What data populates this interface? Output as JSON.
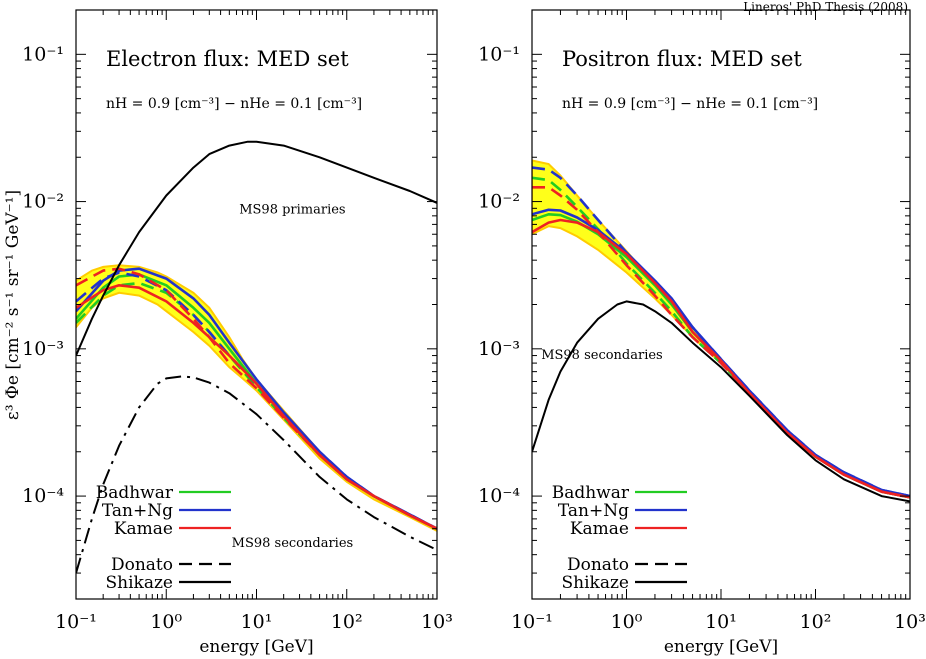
{
  "credit": "Lineros' PhD Thesis (2008)",
  "colors": {
    "band": "#ffff1a",
    "band_edge": "#ffcc00",
    "Badhwar": "#22cc22",
    "Tan+Ng": "#2233cc",
    "Kamae": "#ee2222",
    "reference": "#000000"
  },
  "shared_axes": {
    "xlabel": "energy [GeV]",
    "ylabel": "ε³ Φe [cm⁻² s⁻¹ sr⁻¹ GeV⁻¹]",
    "xscale": "log",
    "yscale": "log",
    "xlim": [
      0.1,
      1000
    ],
    "ylim": [
      2e-05,
      0.2
    ],
    "xticks": [
      "10⁻¹",
      "10⁰",
      "10¹",
      "10²",
      "10³"
    ],
    "yticks": [
      "10⁻⁴",
      "10⁻³",
      "10⁻²",
      "10⁻¹"
    ]
  },
  "legend": {
    "entries": [
      {
        "label": "Badhwar",
        "color": "#22cc22",
        "style": "solid"
      },
      {
        "label": "Tan+Ng",
        "color": "#2233cc",
        "style": "solid"
      },
      {
        "label": "Kamae",
        "color": "#ee2222",
        "style": "solid"
      },
      {
        "label": "Donato",
        "color": "#000000",
        "style": "dashed"
      },
      {
        "label": "Shikaze",
        "color": "#000000",
        "style": "solid"
      }
    ],
    "placement": "bottom-left"
  },
  "chart_data": [
    {
      "type": "line",
      "title": "Electron flux: MED set",
      "subtitle": "nH = 0.9 [cm⁻³] − nHe = 0.1 [cm⁻³]",
      "band": {
        "x": [
          0.1,
          0.15,
          0.2,
          0.3,
          0.5,
          0.8,
          1,
          2,
          3,
          5,
          7,
          10,
          20,
          50,
          100,
          200,
          500,
          1000
        ],
        "upper": [
          0.0029,
          0.0034,
          0.0036,
          0.0037,
          0.0036,
          0.0033,
          0.0031,
          0.0024,
          0.0019,
          0.0012,
          0.00085,
          0.00062,
          0.00038,
          0.0002,
          0.000135,
          0.0001,
          7.5e-05,
          6e-05
        ],
        "lower": [
          0.0014,
          0.0019,
          0.0022,
          0.0024,
          0.0023,
          0.002,
          0.0018,
          0.0013,
          0.00105,
          0.00075,
          0.00063,
          0.00052,
          0.00033,
          0.00018,
          0.000125,
          9.5e-05,
          7.2e-05,
          5.8e-05
        ]
      },
      "series": [
        {
          "name": "Badhwar",
          "model": "Shikaze",
          "x": [
            0.1,
            0.2,
            0.3,
            0.5,
            1,
            2,
            3,
            5,
            10,
            20,
            50,
            100,
            200,
            500,
            1000
          ],
          "values": [
            0.0016,
            0.0026,
            0.0031,
            0.0032,
            0.0027,
            0.0019,
            0.0015,
            0.001,
            0.00058,
            0.00035,
            0.00019,
            0.00013,
            0.0001,
            7.4e-05,
            6e-05
          ]
        },
        {
          "name": "Badhwar",
          "model": "Donato",
          "x": [
            0.1,
            0.2,
            0.3,
            0.5,
            1,
            2,
            3,
            5,
            10,
            20,
            50,
            100,
            200,
            500,
            1000
          ],
          "values": [
            0.0015,
            0.0023,
            0.0027,
            0.0028,
            0.0024,
            0.0017,
            0.0013,
            0.0009,
            0.00055,
            0.00034,
            0.00019,
            0.00013,
            0.0001,
            7.4e-05,
            6e-05
          ]
        },
        {
          "name": "Tan+Ng",
          "model": "Shikaze",
          "x": [
            0.1,
            0.2,
            0.3,
            0.5,
            1,
            2,
            3,
            5,
            10,
            20,
            50,
            100,
            200,
            500,
            1000
          ],
          "values": [
            0.0018,
            0.0029,
            0.0034,
            0.0035,
            0.003,
            0.0022,
            0.0017,
            0.0011,
            0.00062,
            0.00037,
            0.0002,
            0.000135,
            0.0001,
            7.5e-05,
            6e-05
          ]
        },
        {
          "name": "Tan+Ng",
          "model": "Donato",
          "x": [
            0.1,
            0.2,
            0.3,
            0.5,
            1,
            2,
            3,
            5,
            10,
            20,
            50,
            100,
            200,
            500,
            1000
          ],
          "values": [
            0.0021,
            0.003,
            0.0033,
            0.0031,
            0.0025,
            0.0017,
            0.0013,
            0.0009,
            0.00058,
            0.00036,
            0.0002,
            0.000135,
            0.0001,
            7.5e-05,
            6e-05
          ]
        },
        {
          "name": "Kamae",
          "model": "Shikaze",
          "x": [
            0.1,
            0.2,
            0.3,
            0.5,
            1,
            2,
            3,
            5,
            10,
            20,
            50,
            100,
            200,
            500,
            1000
          ],
          "values": [
            0.0019,
            0.0025,
            0.0027,
            0.0026,
            0.0021,
            0.0015,
            0.0012,
            0.0009,
            0.00058,
            0.00035,
            0.00019,
            0.00013,
            0.0001,
            7.4e-05,
            6e-05
          ]
        },
        {
          "name": "Kamae",
          "model": "Donato",
          "x": [
            0.1,
            0.2,
            0.3,
            0.5,
            1,
            2,
            3,
            5,
            10,
            20,
            50,
            100,
            200,
            500,
            1000
          ],
          "values": [
            0.0027,
            0.0034,
            0.0035,
            0.0032,
            0.0025,
            0.0016,
            0.0012,
            0.0008,
            0.00054,
            0.00034,
            0.00019,
            0.00013,
            0.0001,
            7.4e-05,
            6e-05
          ]
        },
        {
          "name": "MS98 primaries",
          "model": "reference",
          "x": [
            0.1,
            0.15,
            0.2,
            0.3,
            0.5,
            1,
            2,
            3,
            5,
            8,
            10,
            20,
            50,
            100,
            200,
            500,
            1000
          ],
          "values": [
            0.0009,
            0.0016,
            0.0023,
            0.0037,
            0.0062,
            0.011,
            0.017,
            0.021,
            0.024,
            0.0255,
            0.0255,
            0.024,
            0.02,
            0.017,
            0.0145,
            0.0118,
            0.0098
          ]
        },
        {
          "name": "MS98 secondaries",
          "model": "reference-dashdot",
          "x": [
            0.1,
            0.15,
            0.2,
            0.3,
            0.5,
            0.8,
            1,
            1.5,
            2,
            3,
            5,
            10,
            20,
            50,
            100,
            200,
            500,
            1000
          ],
          "values": [
            3e-05,
            7e-05,
            0.00012,
            0.00022,
            0.0004,
            0.00058,
            0.00063,
            0.00065,
            0.00064,
            0.00059,
            0.0005,
            0.00036,
            0.00024,
            0.000135,
            9.5e-05,
            7.2e-05,
            5.3e-05,
            4.3e-05
          ]
        }
      ],
      "annotations": [
        {
          "text": "MS98 primaries",
          "x": 25,
          "y": 0.0083
        },
        {
          "text": "MS98 secondaries",
          "x": 25,
          "y": 4.5e-05
        }
      ]
    },
    {
      "type": "line",
      "title": "Positron flux: MED set",
      "subtitle": "nH = 0.9 [cm⁻³] − nHe = 0.1 [cm⁻³]",
      "band": {
        "x": [
          0.1,
          0.15,
          0.2,
          0.3,
          0.5,
          1,
          2,
          3,
          5,
          10,
          20,
          50,
          100,
          200,
          500,
          1000
        ],
        "upper": [
          0.019,
          0.018,
          0.015,
          0.011,
          0.0075,
          0.0046,
          0.0028,
          0.0021,
          0.0014,
          0.00085,
          0.00052,
          0.00028,
          0.00019,
          0.000145,
          0.00011,
          0.0001
        ],
        "lower": [
          0.006,
          0.0068,
          0.0066,
          0.0058,
          0.0047,
          0.0033,
          0.0022,
          0.0017,
          0.0012,
          0.0008,
          0.0005,
          0.00027,
          0.000185,
          0.00014,
          0.000107,
          9.8e-05
        ]
      },
      "series": [
        {
          "name": "Badhwar",
          "model": "Shikaze",
          "x": [
            0.1,
            0.15,
            0.2,
            0.3,
            0.5,
            1,
            2,
            3,
            5,
            10,
            20,
            50,
            100,
            200,
            500,
            1000
          ],
          "values": [
            0.0075,
            0.0082,
            0.0081,
            0.0073,
            0.006,
            0.0042,
            0.0027,
            0.002,
            0.0013,
            0.00082,
            0.0005,
            0.00027,
            0.000185,
            0.00014,
            0.000107,
            9.8e-05
          ]
        },
        {
          "name": "Badhwar",
          "model": "Donato",
          "x": [
            0.1,
            0.15,
            0.2,
            0.3,
            0.5,
            1,
            2,
            3,
            5,
            10,
            20,
            50,
            100,
            200,
            500,
            1000
          ],
          "values": [
            0.0145,
            0.014,
            0.012,
            0.0092,
            0.0065,
            0.0038,
            0.0024,
            0.0018,
            0.0012,
            0.0008,
            0.0005,
            0.00027,
            0.000185,
            0.00014,
            0.000107,
            9.8e-05
          ]
        },
        {
          "name": "Tan+Ng",
          "model": "Shikaze",
          "x": [
            0.1,
            0.15,
            0.2,
            0.3,
            0.5,
            1,
            2,
            3,
            5,
            10,
            20,
            50,
            100,
            200,
            500,
            1000
          ],
          "values": [
            0.0082,
            0.0088,
            0.0087,
            0.0078,
            0.0064,
            0.0045,
            0.0029,
            0.0022,
            0.0014,
            0.00085,
            0.00052,
            0.00028,
            0.00019,
            0.000145,
            0.00011,
            0.0001
          ]
        },
        {
          "name": "Tan+Ng",
          "model": "Donato",
          "x": [
            0.1,
            0.15,
            0.2,
            0.3,
            0.5,
            1,
            2,
            3,
            5,
            10,
            20,
            50,
            100,
            200,
            500,
            1000
          ],
          "values": [
            0.017,
            0.0165,
            0.0145,
            0.011,
            0.0075,
            0.0045,
            0.0028,
            0.0021,
            0.0014,
            0.00085,
            0.00052,
            0.00028,
            0.00019,
            0.000145,
            0.00011,
            0.0001
          ]
        },
        {
          "name": "Kamae",
          "model": "Shikaze",
          "x": [
            0.1,
            0.15,
            0.2,
            0.3,
            0.5,
            1,
            2,
            3,
            5,
            10,
            20,
            50,
            100,
            200,
            500,
            1000
          ],
          "values": [
            0.0062,
            0.0072,
            0.0075,
            0.0072,
            0.0062,
            0.0044,
            0.0028,
            0.0021,
            0.0013,
            0.00083,
            0.0005,
            0.00027,
            0.000185,
            0.00014,
            0.000107,
            9.8e-05
          ]
        },
        {
          "name": "Kamae",
          "model": "Donato",
          "x": [
            0.1,
            0.15,
            0.2,
            0.3,
            0.5,
            1,
            2,
            3,
            5,
            10,
            20,
            50,
            100,
            200,
            500,
            1000
          ],
          "values": [
            0.0125,
            0.0125,
            0.011,
            0.0088,
            0.0062,
            0.0037,
            0.0023,
            0.0017,
            0.0012,
            0.0008,
            0.0005,
            0.00027,
            0.000185,
            0.00014,
            0.000107,
            9.8e-05
          ]
        },
        {
          "name": "MS98 secondaries",
          "model": "reference",
          "x": [
            0.1,
            0.15,
            0.2,
            0.3,
            0.5,
            0.8,
            1,
            1.5,
            2,
            3,
            5,
            10,
            20,
            50,
            100,
            200,
            500,
            1000
          ],
          "values": [
            0.0002,
            0.00045,
            0.0007,
            0.0011,
            0.0016,
            0.002,
            0.0021,
            0.002,
            0.0018,
            0.0015,
            0.0011,
            0.00075,
            0.00048,
            0.00026,
            0.000175,
            0.00013,
            0.0001,
            9.2e-05
          ]
        }
      ],
      "annotations": [
        {
          "text": "MS98 secondaries",
          "x": 0.55,
          "y": 0.00085
        }
      ]
    }
  ]
}
